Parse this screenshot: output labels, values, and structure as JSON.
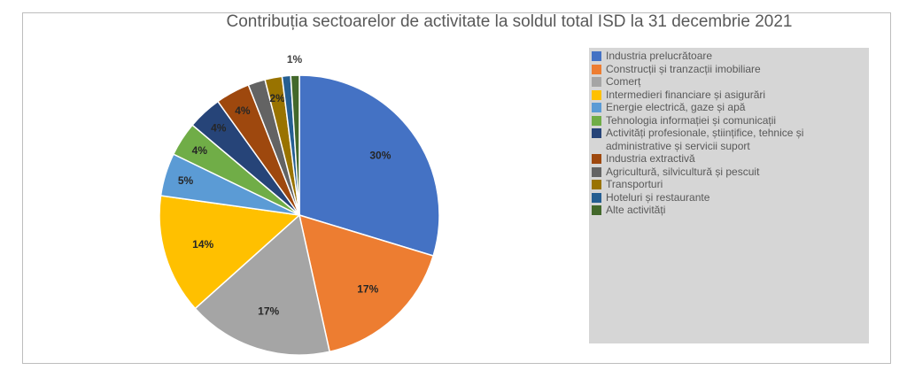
{
  "chart_data": {
    "type": "pie",
    "title": "Contribuția sectoarelor de activitate la soldul total ISD la 31 decembrie 2021",
    "slices": [
      {
        "name": "Industria prelucrătoare",
        "value": 30,
        "label": "30%",
        "color": "#4472C4"
      },
      {
        "name": "Construcții și tranzacții imobiliare",
        "value": 17,
        "label": "17%",
        "color": "#ED7D31"
      },
      {
        "name": "Comerț",
        "value": 17,
        "label": "17%",
        "color": "#A5A5A5"
      },
      {
        "name": "Intermedieri financiare și asigurări",
        "value": 14,
        "label": "14%",
        "color": "#FFC000"
      },
      {
        "name": "Energie electrică, gaze și apă",
        "value": 5,
        "label": "5%",
        "color": "#5B9BD5"
      },
      {
        "name": "Tehnologia informației și comunicații",
        "value": 4,
        "label": "4%",
        "color": "#70AD47"
      },
      {
        "name": "Activități profesionale, științifice, tehnice și administrative și servicii suport",
        "value": 4,
        "label": "4%",
        "color": "#264478"
      },
      {
        "name": "Industria extractivă",
        "value": 4,
        "label": "4%",
        "color": "#9E480E"
      },
      {
        "name": "Agricultură, silvicultură și pescuit",
        "value": 2,
        "label": "",
        "color": "#636363"
      },
      {
        "name": "Transporturi",
        "value": 2,
        "label": "2%",
        "color": "#997300"
      },
      {
        "name": "Hoteluri și restaurante",
        "value": 1,
        "label": "",
        "color": "#255E91"
      },
      {
        "name": "Alte activități",
        "value": 1,
        "label": "1%",
        "color": "#43682B"
      }
    ],
    "legend_position": "right"
  }
}
